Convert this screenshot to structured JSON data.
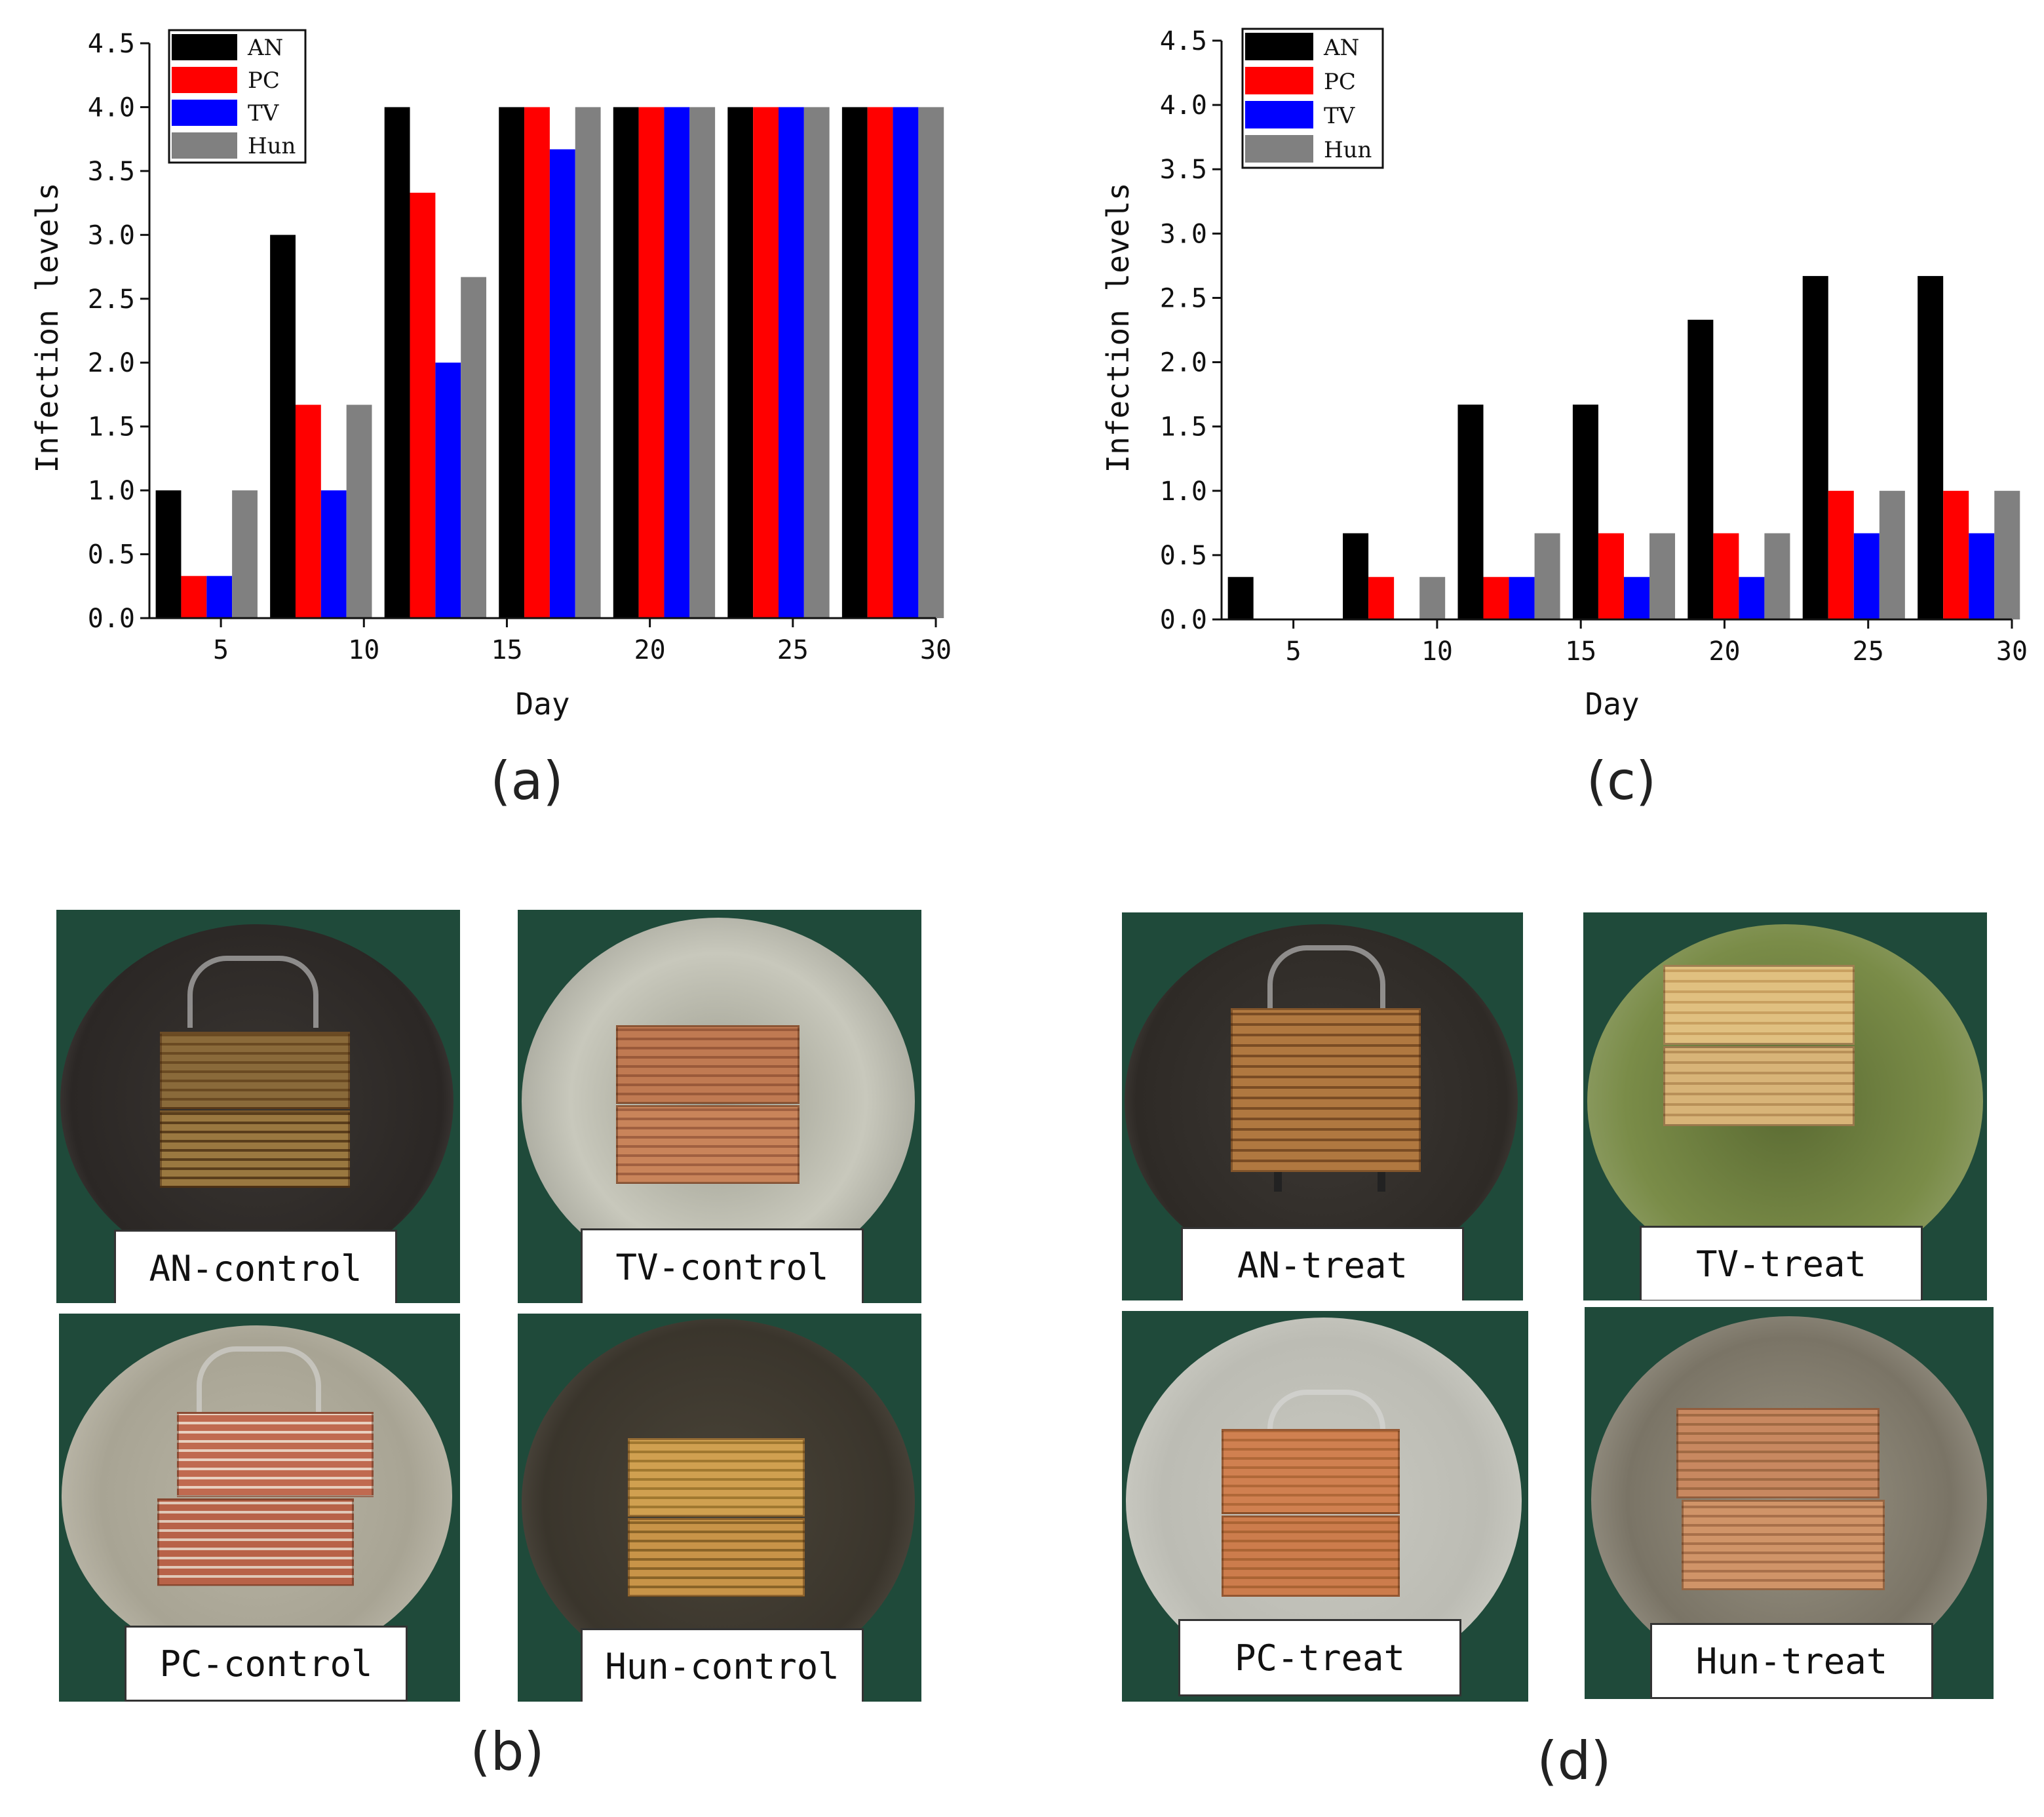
{
  "chart_data": [
    {
      "type": "bar",
      "panel": "(a)",
      "xlabel": "Day",
      "ylabel": "Infection levels",
      "ylim": [
        0,
        4.5
      ],
      "xlim": [
        2.5,
        30
      ],
      "xticks": [
        "5",
        "10",
        "15",
        "20",
        "25",
        "30"
      ],
      "yticks": [
        "0.0",
        "0.5",
        "1.0",
        "1.5",
        "2.0",
        "2.5",
        "3.0",
        "3.5",
        "4.0",
        "4.5"
      ],
      "legend_position": "top-left",
      "group_days": [
        4.5,
        8.5,
        12.5,
        16.5,
        20.5,
        24.5,
        28.5
      ],
      "series": [
        {
          "name": "AN",
          "color": "#000000",
          "values": [
            1.0,
            3.0,
            4.0,
            4.0,
            4.0,
            4.0,
            4.0
          ]
        },
        {
          "name": "PC",
          "color": "#ff0000",
          "values": [
            0.33,
            1.67,
            3.33,
            4.0,
            4.0,
            4.0,
            4.0
          ]
        },
        {
          "name": "TV",
          "color": "#0000ff",
          "values": [
            0.33,
            1.0,
            2.0,
            3.67,
            4.0,
            4.0,
            4.0
          ]
        },
        {
          "name": "Hun",
          "color": "#808080",
          "values": [
            1.0,
            1.67,
            2.67,
            4.0,
            4.0,
            4.0,
            4.0
          ]
        }
      ]
    },
    {
      "type": "bar",
      "panel": "(c)",
      "xlabel": "Day",
      "ylabel": "Infection levels",
      "ylim": [
        0,
        4.5
      ],
      "xlim": [
        2.5,
        30
      ],
      "xticks": [
        "5",
        "10",
        "15",
        "20",
        "25",
        "30"
      ],
      "yticks": [
        "0.0",
        "0.5",
        "1.0",
        "1.5",
        "2.0",
        "2.5",
        "3.0",
        "3.5",
        "4.0",
        "4.5"
      ],
      "legend_position": "top-left",
      "group_days": [
        4.5,
        8.5,
        12.5,
        16.5,
        20.5,
        24.5,
        28.5
      ],
      "series": [
        {
          "name": "AN",
          "color": "#000000",
          "values": [
            0.33,
            0.67,
            1.67,
            1.67,
            2.33,
            2.67,
            2.67
          ]
        },
        {
          "name": "PC",
          "color": "#ff0000",
          "values": [
            0,
            0.33,
            0.33,
            0.67,
            0.67,
            1.0,
            1.0
          ]
        },
        {
          "name": "TV",
          "color": "#0000ff",
          "values": [
            0,
            0,
            0.33,
            0.33,
            0.33,
            0.67,
            0.67
          ]
        },
        {
          "name": "Hun",
          "color": "#808080",
          "values": [
            0,
            0.33,
            0.67,
            0.67,
            0.67,
            1.0,
            1.0
          ]
        }
      ]
    }
  ],
  "panels": {
    "a": "(a)",
    "b": "(b)",
    "c": "(c)",
    "d": "(d)"
  },
  "photos": {
    "b": {
      "an": "AN-control",
      "tv": "TV-control",
      "pc": "PC-control",
      "hun": "Hun-control"
    },
    "d": {
      "an": "AN-treat",
      "tv": "TV-treat",
      "pc": "PC-treat",
      "hun": "Hun-treat"
    }
  }
}
